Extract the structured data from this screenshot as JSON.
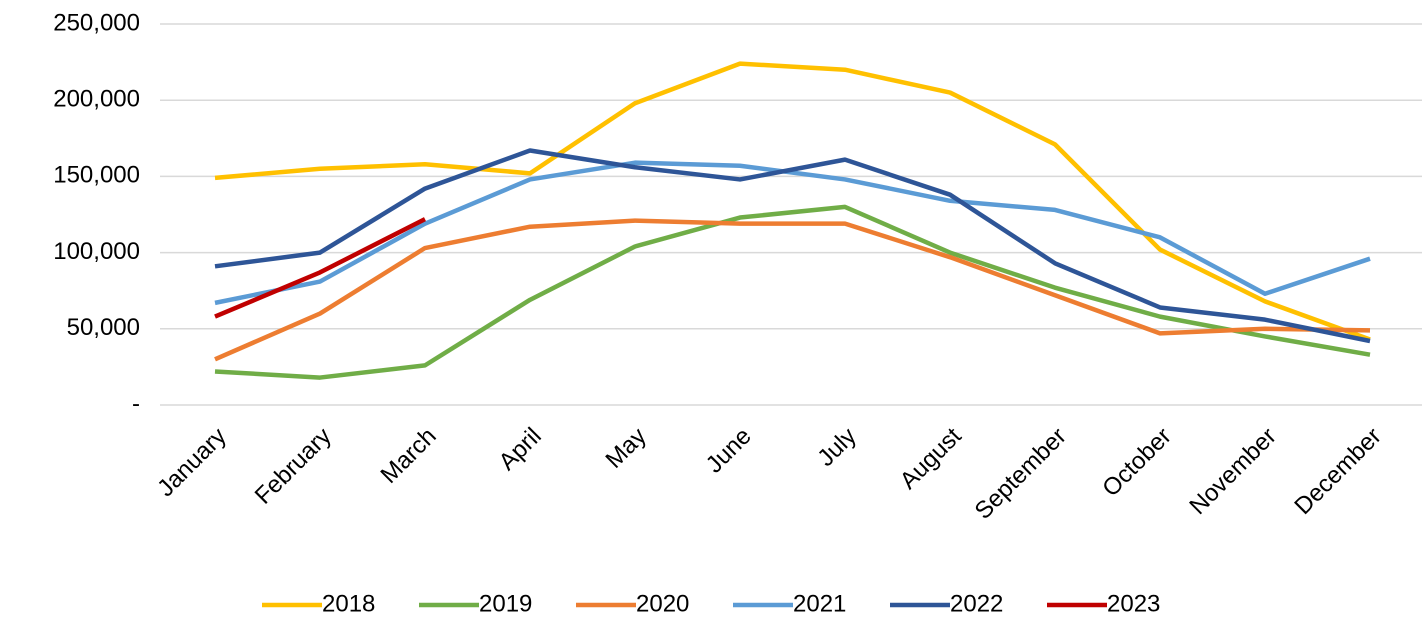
{
  "chart_data": {
    "type": "line",
    "categories": [
      "January",
      "February",
      "March",
      "April",
      "May",
      "June",
      "July",
      "August",
      "September",
      "October",
      "November",
      "December"
    ],
    "series": [
      {
        "name": "2018",
        "color": "#ffc000",
        "values": [
          149000,
          155000,
          158000,
          152000,
          198000,
          224000,
          220000,
          205000,
          171000,
          102000,
          68000,
          43000
        ]
      },
      {
        "name": "2019",
        "color": "#70ad47",
        "values": [
          22000,
          18000,
          26000,
          69000,
          104000,
          123000,
          130000,
          100000,
          77000,
          58000,
          45000,
          33000
        ]
      },
      {
        "name": "2020",
        "color": "#ed7d31",
        "values": [
          30000,
          60000,
          103000,
          117000,
          121000,
          119000,
          119000,
          97000,
          72000,
          47000,
          50000,
          49000
        ]
      },
      {
        "name": "2021",
        "color": "#5b9bd5",
        "values": [
          67000,
          81000,
          119000,
          148000,
          159000,
          157000,
          148000,
          134000,
          128000,
          110000,
          73000,
          96000
        ]
      },
      {
        "name": "2022",
        "color": "#2e5597",
        "values": [
          91000,
          100000,
          142000,
          167000,
          156000,
          148000,
          161000,
          138000,
          93000,
          64000,
          56000,
          42000
        ]
      },
      {
        "name": "2023",
        "color": "#c00000",
        "values": [
          58000,
          87000,
          122000,
          null,
          null,
          null,
          null,
          null,
          null,
          null,
          null,
          null
        ]
      }
    ],
    "ylim": [
      0,
      250000
    ],
    "yticks": [
      {
        "value": 0,
        "label": "-"
      },
      {
        "value": 50000,
        "label": "50,000"
      },
      {
        "value": 100000,
        "label": "100,000"
      },
      {
        "value": 150000,
        "label": "150,000"
      },
      {
        "value": 200000,
        "label": "200,000"
      },
      {
        "value": 250000,
        "label": "250,000"
      }
    ],
    "grid": true,
    "legend": "bottom"
  }
}
